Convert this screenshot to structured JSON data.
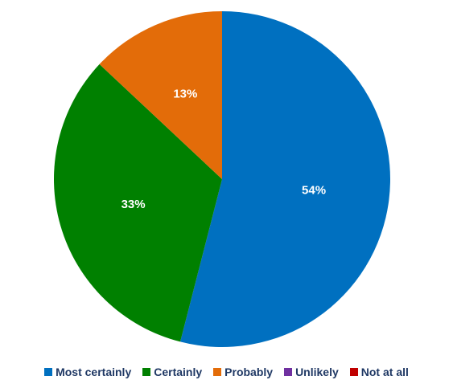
{
  "chart_data": {
    "type": "pie",
    "title": "",
    "slices": [
      {
        "label": "Most certainly",
        "value": 54,
        "display": "54%",
        "color": "#0070c0"
      },
      {
        "label": "Certainly",
        "value": 33,
        "display": "33%",
        "color": "#008000"
      },
      {
        "label": "Probably",
        "value": 13,
        "display": "13%",
        "color": "#e36c09"
      },
      {
        "label": "Unlikely",
        "value": 0,
        "display": "",
        "color": "#7030a0"
      },
      {
        "label": "Not at all",
        "value": 0,
        "display": "",
        "color": "#c00000"
      }
    ],
    "start_angle_deg": 0,
    "direction": "clockwise",
    "legend_position": "bottom"
  }
}
